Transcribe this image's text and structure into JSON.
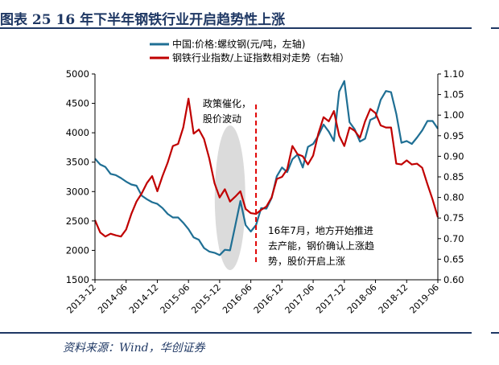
{
  "figure": {
    "title": "图表 25   16 年下半年钢铁行业开启趋势性上涨",
    "source": "资料来源：Wind，华创证券"
  },
  "chart_data": {
    "type": "line",
    "legend": {
      "placement": "top-left"
    },
    "grid": false,
    "x_axis": {
      "ticks": [
        "2013-12",
        "2014-06",
        "2014-12",
        "2015-06",
        "2015-12",
        "2016-06",
        "2016-12",
        "2017-06",
        "2017-12",
        "2018-06",
        "2018-12",
        "2019-06"
      ],
      "range": [
        "2013-12",
        "2019-06"
      ]
    },
    "y_left": {
      "ticks": [
        1500,
        2000,
        2500,
        3000,
        3500,
        4000,
        4500,
        5000
      ],
      "range": [
        1500,
        5000
      ]
    },
    "y_right": {
      "ticks": [
        "0.60",
        "0.65",
        "0.70",
        "0.75",
        "0.80",
        "0.85",
        "0.90",
        "0.95",
        "1.00",
        "1.05",
        "1.10"
      ],
      "range": [
        0.6,
        1.1
      ]
    },
    "series": [
      {
        "name": "中国:价格:螺纹钢(元/吨，左轴)",
        "axis": "left",
        "color": "#1f6f94",
        "points": [
          [
            "2013-12",
            3560
          ],
          [
            "2014-01",
            3460
          ],
          [
            "2014-02",
            3420
          ],
          [
            "2014-03",
            3300
          ],
          [
            "2014-04",
            3280
          ],
          [
            "2014-05",
            3230
          ],
          [
            "2014-06",
            3170
          ],
          [
            "2014-07",
            3120
          ],
          [
            "2014-08",
            3100
          ],
          [
            "2014-09",
            2930
          ],
          [
            "2014-10",
            2870
          ],
          [
            "2014-11",
            2820
          ],
          [
            "2014-12",
            2790
          ],
          [
            "2015-01",
            2720
          ],
          [
            "2015-02",
            2620
          ],
          [
            "2015-03",
            2560
          ],
          [
            "2015-04",
            2560
          ],
          [
            "2015-05",
            2470
          ],
          [
            "2015-06",
            2360
          ],
          [
            "2015-07",
            2220
          ],
          [
            "2015-08",
            2180
          ],
          [
            "2015-09",
            2040
          ],
          [
            "2015-10",
            1980
          ],
          [
            "2015-11",
            1960
          ],
          [
            "2015-12",
            1920
          ],
          [
            "2016-01",
            2010
          ],
          [
            "2016-02",
            2000
          ],
          [
            "2016-03",
            2420
          ],
          [
            "2016-04",
            2840
          ],
          [
            "2016-05",
            2430
          ],
          [
            "2016-06",
            2320
          ],
          [
            "2016-07",
            2430
          ],
          [
            "2016-08",
            2720
          ],
          [
            "2016-09",
            2710
          ],
          [
            "2016-10",
            2890
          ],
          [
            "2016-11",
            3260
          ],
          [
            "2016-12",
            3410
          ],
          [
            "2017-01",
            3330
          ],
          [
            "2017-02",
            3550
          ],
          [
            "2017-03",
            3630
          ],
          [
            "2017-04",
            3410
          ],
          [
            "2017-05",
            3760
          ],
          [
            "2017-06",
            3810
          ],
          [
            "2017-07",
            3950
          ],
          [
            "2017-08",
            4140
          ],
          [
            "2017-09",
            4020
          ],
          [
            "2017-10",
            3860
          ],
          [
            "2017-11",
            4700
          ],
          [
            "2017-12",
            4880
          ],
          [
            "2018-01",
            4180
          ],
          [
            "2018-02",
            4060
          ],
          [
            "2018-03",
            3850
          ],
          [
            "2018-04",
            3900
          ],
          [
            "2018-05",
            4220
          ],
          [
            "2018-06",
            4260
          ],
          [
            "2018-07",
            4560
          ],
          [
            "2018-08",
            4710
          ],
          [
            "2018-09",
            4690
          ],
          [
            "2018-10",
            4320
          ],
          [
            "2018-11",
            3830
          ],
          [
            "2018-12",
            3860
          ],
          [
            "2019-01",
            3810
          ],
          [
            "2019-02",
            3920
          ],
          [
            "2019-03",
            4040
          ],
          [
            "2019-04",
            4200
          ],
          [
            "2019-05",
            4200
          ],
          [
            "2019-06",
            4070
          ]
        ]
      },
      {
        "name": "钢铁行业指数/上证指数相对走势（右轴）",
        "axis": "right",
        "color": "#c00000",
        "points": [
          [
            "2013-12",
            0.745
          ],
          [
            "2014-01",
            0.715
          ],
          [
            "2014-02",
            0.705
          ],
          [
            "2014-03",
            0.712
          ],
          [
            "2014-04",
            0.708
          ],
          [
            "2014-05",
            0.705
          ],
          [
            "2014-06",
            0.722
          ],
          [
            "2014-07",
            0.76
          ],
          [
            "2014-08",
            0.79
          ],
          [
            "2014-09",
            0.81
          ],
          [
            "2014-10",
            0.835
          ],
          [
            "2014-11",
            0.852
          ],
          [
            "2014-12",
            0.815
          ],
          [
            "2015-01",
            0.852
          ],
          [
            "2015-02",
            0.885
          ],
          [
            "2015-03",
            0.925
          ],
          [
            "2015-04",
            0.93
          ],
          [
            "2015-05",
            0.97
          ],
          [
            "2015-06",
            1.04
          ],
          [
            "2015-07",
            0.955
          ],
          [
            "2015-08",
            0.965
          ],
          [
            "2015-09",
            0.942
          ],
          [
            "2015-10",
            0.895
          ],
          [
            "2015-11",
            0.835
          ],
          [
            "2015-12",
            0.8
          ],
          [
            "2016-01",
            0.82
          ],
          [
            "2016-02",
            0.79
          ],
          [
            "2016-03",
            0.802
          ],
          [
            "2016-04",
            0.815
          ],
          [
            "2016-05",
            0.772
          ],
          [
            "2016-06",
            0.762
          ],
          [
            "2016-07",
            0.76
          ],
          [
            "2016-08",
            0.77
          ],
          [
            "2016-09",
            0.778
          ],
          [
            "2016-10",
            0.8
          ],
          [
            "2016-11",
            0.845
          ],
          [
            "2016-12",
            0.85
          ],
          [
            "2017-01",
            0.868
          ],
          [
            "2017-02",
            0.925
          ],
          [
            "2017-03",
            0.905
          ],
          [
            "2017-04",
            0.9
          ],
          [
            "2017-05",
            0.88
          ],
          [
            "2017-06",
            0.902
          ],
          [
            "2017-07",
            0.955
          ],
          [
            "2017-08",
            0.995
          ],
          [
            "2017-09",
            0.985
          ],
          [
            "2017-10",
            1.01
          ],
          [
            "2017-11",
            0.95
          ],
          [
            "2017-12",
            0.925
          ],
          [
            "2018-01",
            0.97
          ],
          [
            "2018-02",
            0.962
          ],
          [
            "2018-03",
            0.945
          ],
          [
            "2018-04",
            0.985
          ],
          [
            "2018-05",
            1.015
          ],
          [
            "2018-06",
            1.005
          ],
          [
            "2018-07",
            0.975
          ],
          [
            "2018-08",
            0.97
          ],
          [
            "2018-09",
            0.97
          ],
          [
            "2018-10",
            0.882
          ],
          [
            "2018-11",
            0.88
          ],
          [
            "2018-12",
            0.89
          ],
          [
            "2019-01",
            0.88
          ],
          [
            "2019-02",
            0.882
          ],
          [
            "2019-03",
            0.872
          ],
          [
            "2019-04",
            0.832
          ],
          [
            "2019-05",
            0.795
          ],
          [
            "2019-06",
            0.752
          ]
        ]
      }
    ],
    "annotations": [
      {
        "id": "policy",
        "text": [
          "政策催化，",
          "股价波动"
        ]
      },
      {
        "id": "rally",
        "text": [
          "16年7月，地方开始推进",
          "去产能，钢价确认上涨趋",
          "势，股价开启上涨"
        ]
      }
    ],
    "markers": {
      "highlight_ellipse_center": "2016-02",
      "dashed_vline_at": "2016-07"
    }
  }
}
